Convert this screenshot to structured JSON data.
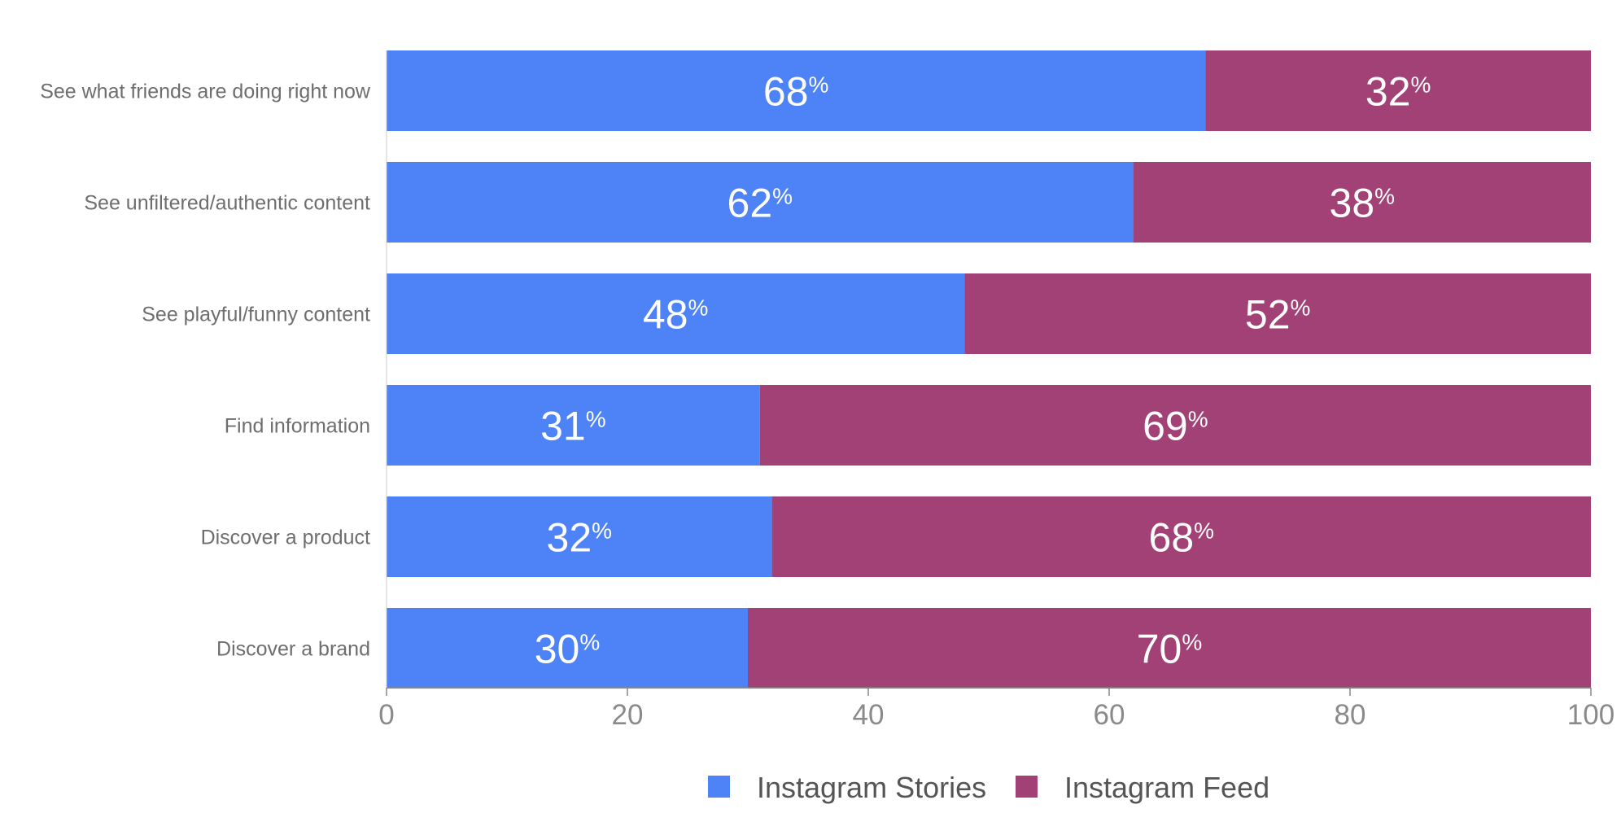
{
  "colors": {
    "stories": "#4d83f6",
    "feed": "#a14176",
    "axis": "#888888"
  },
  "chart_data": {
    "type": "bar",
    "orientation": "horizontal",
    "stacked": true,
    "categories": [
      "See what friends are doing right now",
      "See unfiltered/authentic content",
      "See playful/funny content",
      "Find information",
      "Discover a product",
      "Discover a brand"
    ],
    "series": [
      {
        "name": "Instagram Stories",
        "values": [
          68,
          62,
          48,
          31,
          32,
          30
        ]
      },
      {
        "name": "Instagram Feed",
        "values": [
          32,
          38,
          52,
          69,
          68,
          70
        ]
      }
    ],
    "data_label_suffix": "%",
    "xticks": [
      0,
      20,
      40,
      60,
      80,
      100
    ],
    "xlim": [
      0,
      100
    ],
    "xlabel": "",
    "ylabel": "",
    "grid": false,
    "legend_position": "bottom"
  }
}
